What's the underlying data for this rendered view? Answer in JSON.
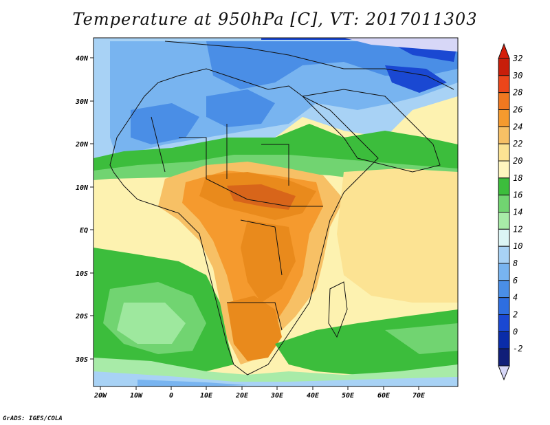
{
  "title": "Temperature at 950hPa [C], VT: 2017011303",
  "credit": "GrADS: IGES/COLA",
  "map": {
    "lat_labels": [
      "40N",
      "30N",
      "20N",
      "10N",
      "EQ",
      "10S",
      "20S",
      "30S"
    ],
    "lon_labels": [
      "20W",
      "10W",
      "0",
      "10E",
      "20E",
      "30E",
      "40E",
      "50E",
      "60E",
      "70E"
    ],
    "field_colors": {
      "ocean_warm": "#f2e8a0",
      "ocean_mid": "#fdf2b0",
      "ocean_green": "#48c448",
      "ocean_lightgreen": "#9ee89e",
      "land_hot": "#e98a1c",
      "land_very_hot": "#d8651a",
      "cold_blue": "#6aa5e8",
      "deep_blue": "#1a4fd0",
      "lightblue": "#a8d4f5"
    }
  },
  "colorbar": {
    "labels": [
      "32",
      "30",
      "28",
      "26",
      "24",
      "22",
      "20",
      "18",
      "16",
      "14",
      "12",
      "10",
      "8",
      "6",
      "4",
      "2",
      "0",
      "-2"
    ],
    "colors": [
      "#c81e0a",
      "#eb461a",
      "#f07820",
      "#f59a2e",
      "#f7c065",
      "#fce393",
      "#fff6bf",
      "#3cbd3c",
      "#71d471",
      "#a8eba8",
      "#dcf5f5",
      "#a8d2f5",
      "#78b4f0",
      "#4a8ee6",
      "#2e6ee0",
      "#1a48d2",
      "#0a2ca8",
      "#101e78"
    ],
    "top_arrow_color": "#d41e0a",
    "bottom_arrow_color": "#d7d7f7"
  }
}
